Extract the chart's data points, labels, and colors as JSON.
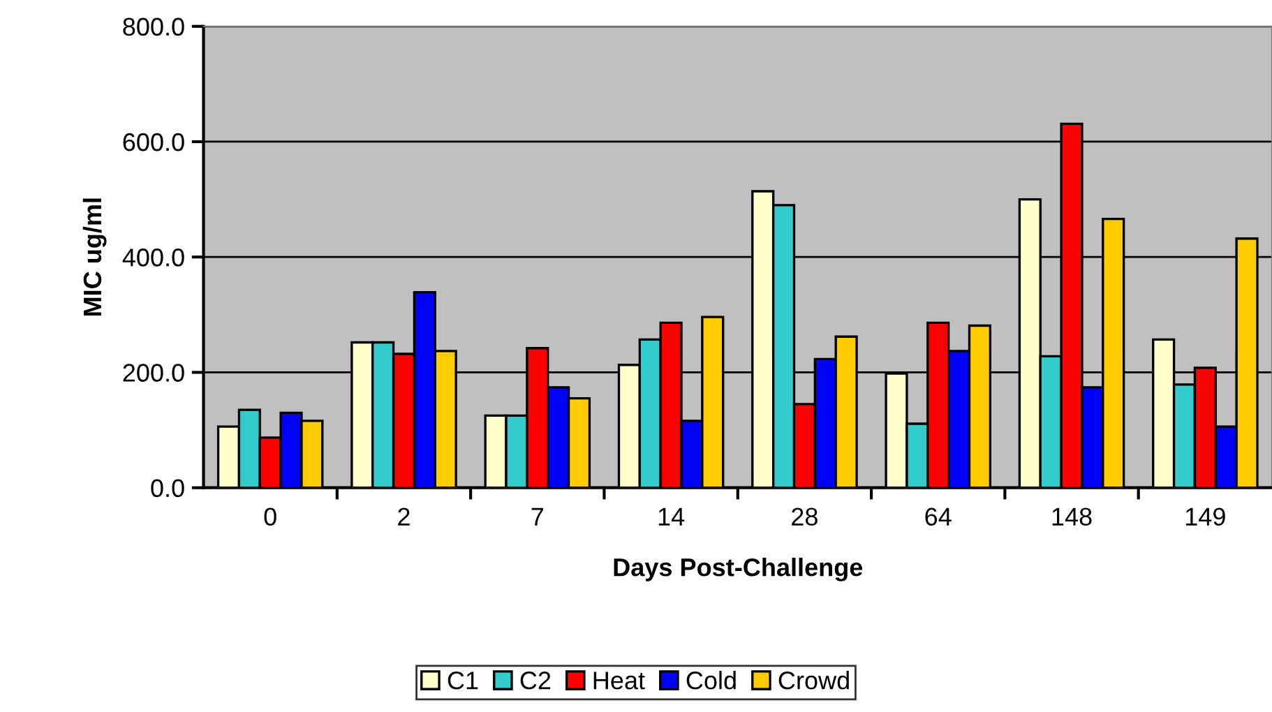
{
  "chart_data": {
    "type": "bar",
    "xlabel": "Days Post-Challenge",
    "ylabel": "MIC ug/ml",
    "categories": [
      "0",
      "2",
      "7",
      "14",
      "28",
      "64",
      "148",
      "149"
    ],
    "series": [
      {
        "name": "C1",
        "color": "#ffffcc",
        "values": [
          106,
          252,
          125,
          213,
          514,
          198,
          500,
          257
        ]
      },
      {
        "name": "C2",
        "color": "#33cccc",
        "values": [
          135,
          252,
          125,
          257,
          490,
          111,
          228,
          179
        ]
      },
      {
        "name": "Heat",
        "color": "#ff0000",
        "values": [
          87,
          232,
          242,
          286,
          145,
          286,
          631,
          208
        ]
      },
      {
        "name": "Cold",
        "color": "#0000ff",
        "values": [
          130,
          339,
          174,
          116,
          223,
          237,
          174,
          106
        ]
      },
      {
        "name": "Crowd",
        "color": "#ffcc00",
        "values": [
          116,
          237,
          155,
          296,
          262,
          281,
          466,
          432
        ]
      }
    ],
    "ylim": [
      0,
      800
    ],
    "yticks": [
      {
        "value": 0,
        "label": "0.0"
      },
      {
        "value": 200,
        "label": "200.0"
      },
      {
        "value": 400,
        "label": "400.0"
      },
      {
        "value": 600,
        "label": "600.0"
      },
      {
        "value": 800,
        "label": "800.0"
      }
    ],
    "grid": "y",
    "legend": "bottom"
  }
}
